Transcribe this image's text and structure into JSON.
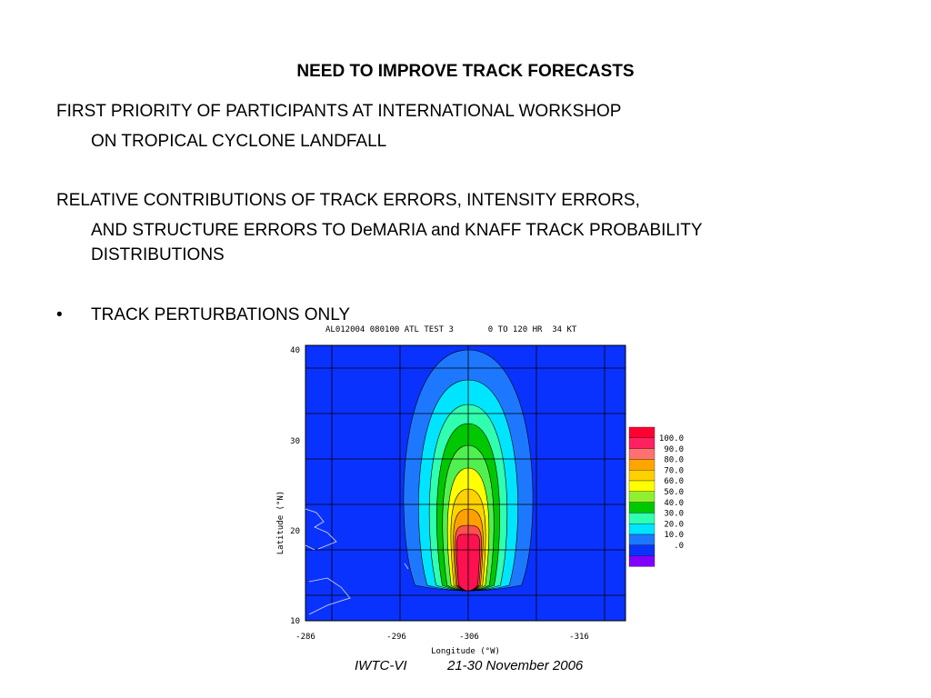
{
  "title": "NEED TO IMPROVE TRACK FORECASTS",
  "paragraphs": [
    {
      "first": "FIRST PRIORITY OF PARTICIPANTS AT INTERNATIONAL WORKSHOP",
      "rest": [
        "ON TROPICAL CYCLONE LANDFALL"
      ]
    },
    {
      "first": "RELATIVE CONTRIBUTIONS OF TRACK ERRORS, INTENSITY ERRORS,",
      "rest": [
        "AND STRUCTURE ERRORS TO DeMARIA and KNAFF TRACK PROBABILITY",
        "DISTRIBUTIONS"
      ]
    }
  ],
  "bullet": {
    "marker": "•",
    "text": "TRACK PERTURBATIONS ONLY"
  },
  "figure": {
    "header": "AL012004 080100 ATL TEST 3       0 TO 120 HR  34 KT",
    "ylabel": "Latitude (°N)",
    "xlabel": "Longitude (°W)",
    "yticks": [
      "40",
      "30",
      "20",
      "10"
    ],
    "xticks": [
      "-286",
      "-296",
      "-306",
      "-316"
    ],
    "legend": [
      "100.0",
      "90.0",
      "80.0",
      "70.0",
      "60.0",
      "50.0",
      "40.0",
      "30.0",
      "20.0",
      "10.0",
      ".0"
    ]
  },
  "footer": {
    "left": "IWTC-VI",
    "right": "21-30 November 2006"
  }
}
